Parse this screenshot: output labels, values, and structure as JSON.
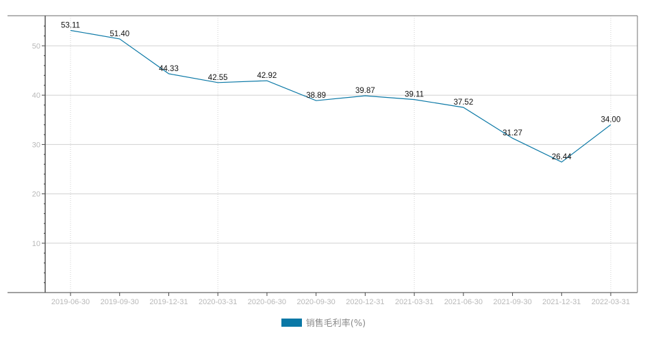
{
  "chart_data": {
    "type": "line",
    "title": "",
    "xlabel": "",
    "ylabel": "",
    "categories": [
      "2019-06-30",
      "2019-09-30",
      "2019-12-31",
      "2020-03-31",
      "2020-06-30",
      "2020-09-30",
      "2020-12-31",
      "2021-03-31",
      "2021-06-30",
      "2021-09-30",
      "2021-12-31",
      "2022-03-31"
    ],
    "series": [
      {
        "name": "销售毛利率(%)",
        "color": "#0a78a6",
        "values": [
          53.11,
          51.4,
          44.33,
          42.55,
          42.92,
          38.89,
          39.87,
          39.11,
          37.52,
          31.27,
          26.44,
          34.0
        ],
        "labels": [
          "53.11",
          "51.40",
          "44.33",
          "42.55",
          "42.92",
          "38.89",
          "39.87",
          "39.11",
          "37.52",
          "31.27",
          "26.44",
          "34.00"
        ]
      }
    ],
    "ylim": [
      0,
      56
    ],
    "yticks": [
      10,
      20,
      30,
      40,
      50
    ],
    "grid": {
      "horizontal": true,
      "vertical_dotted_at": [
        "2019-06-30",
        "2020-03-31",
        "2021-03-31",
        "2022-03-31"
      ]
    },
    "legend_position": "bottom-center"
  },
  "legend": {
    "label": "销售毛利率(%)",
    "color": "#0a78a6"
  }
}
